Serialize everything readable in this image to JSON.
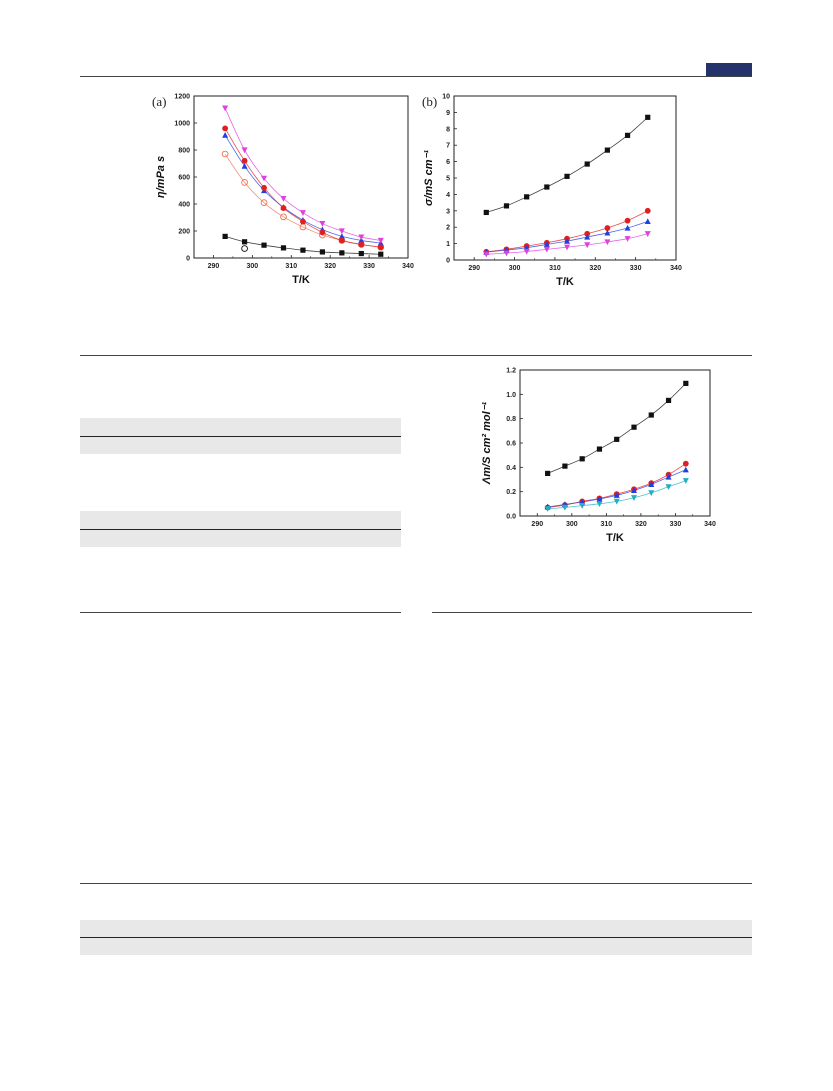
{
  "header": {
    "badge_color": "#24346b"
  },
  "chart_data": [
    {
      "type": "scatter",
      "panel_label": "(a)",
      "title": "",
      "xlabel": "T/K",
      "ylabel": "η/mPa s",
      "xlim": [
        285,
        340
      ],
      "ylim": [
        0,
        1200
      ],
      "xticks": [
        290,
        300,
        310,
        320,
        330,
        340
      ],
      "yticks": [
        0,
        200,
        400,
        600,
        800,
        1000,
        1200
      ],
      "x": [
        293,
        298,
        303,
        308,
        313,
        318,
        323,
        328,
        333
      ],
      "series": [
        {
          "marker": "square",
          "color": "#111111",
          "values": [
            160,
            120,
            95,
            75,
            58,
            45,
            38,
            33,
            28
          ]
        },
        {
          "marker": "circle-open",
          "color": "#111111",
          "values": [
            null,
            70,
            null,
            null,
            null,
            null,
            null,
            null,
            null
          ]
        },
        {
          "marker": "circle-open",
          "color": "#f07050",
          "values": [
            770,
            560,
            410,
            305,
            230,
            170,
            130,
            100,
            80
          ]
        },
        {
          "marker": "triangle-up",
          "color": "#2040e0",
          "values": [
            910,
            680,
            500,
            375,
            280,
            210,
            160,
            130,
            110
          ]
        },
        {
          "marker": "circle",
          "color": "#e02020",
          "values": [
            960,
            720,
            520,
            370,
            270,
            190,
            130,
            100,
            80
          ]
        },
        {
          "marker": "triangle-down",
          "color": "#e040e0",
          "values": [
            1110,
            800,
            590,
            440,
            335,
            255,
            200,
            155,
            130
          ]
        }
      ]
    },
    {
      "type": "scatter",
      "panel_label": "(b)",
      "title": "",
      "xlabel": "T/K",
      "ylabel": "σ/mS cm⁻¹",
      "xlim": [
        285,
        340
      ],
      "ylim": [
        0,
        10
      ],
      "xticks": [
        290,
        300,
        310,
        320,
        330,
        340
      ],
      "yticks": [
        0,
        1,
        2,
        3,
        4,
        5,
        6,
        7,
        8,
        9,
        10
      ],
      "x": [
        293,
        298,
        303,
        308,
        313,
        318,
        323,
        328,
        333
      ],
      "series": [
        {
          "marker": "square",
          "color": "#111111",
          "values": [
            2.9,
            3.3,
            3.85,
            4.45,
            5.1,
            5.85,
            6.7,
            7.6,
            8.7
          ]
        },
        {
          "marker": "circle",
          "color": "#e02020",
          "values": [
            0.5,
            0.65,
            0.85,
            1.05,
            1.3,
            1.6,
            1.95,
            2.4,
            3.0
          ]
        },
        {
          "marker": "triangle-up",
          "color": "#2040e0",
          "values": [
            0.48,
            0.6,
            0.75,
            0.95,
            1.15,
            1.4,
            1.65,
            1.95,
            2.35
          ]
        },
        {
          "marker": "triangle-down",
          "color": "#e040e0",
          "values": [
            0.35,
            0.42,
            0.52,
            0.65,
            0.78,
            0.92,
            1.1,
            1.3,
            1.6
          ]
        }
      ]
    },
    {
      "type": "scatter",
      "panel_label": "",
      "title": "",
      "xlabel": "T/K",
      "ylabel": "Λm/S cm² mol⁻¹",
      "xlim": [
        285,
        340
      ],
      "ylim": [
        0,
        1.2
      ],
      "xticks": [
        290,
        300,
        310,
        320,
        330,
        340
      ],
      "yticks": [
        0.0,
        0.2,
        0.4,
        0.6,
        0.8,
        1.0,
        1.2
      ],
      "x": [
        293,
        298,
        303,
        308,
        313,
        318,
        323,
        328,
        333
      ],
      "series": [
        {
          "marker": "square",
          "color": "#111111",
          "values": [
            0.35,
            0.41,
            0.47,
            0.55,
            0.63,
            0.73,
            0.83,
            0.95,
            1.09
          ]
        },
        {
          "marker": "circle",
          "color": "#e02020",
          "values": [
            0.07,
            0.09,
            0.12,
            0.145,
            0.18,
            0.22,
            0.27,
            0.34,
            0.43
          ]
        },
        {
          "marker": "triangle-up",
          "color": "#2040e0",
          "values": [
            0.075,
            0.095,
            0.115,
            0.14,
            0.17,
            0.21,
            0.26,
            0.32,
            0.38
          ]
        },
        {
          "marker": "triangle-down",
          "color": "#20b0c0",
          "values": [
            0.06,
            0.07,
            0.085,
            0.1,
            0.12,
            0.15,
            0.19,
            0.24,
            0.29
          ]
        }
      ]
    }
  ]
}
